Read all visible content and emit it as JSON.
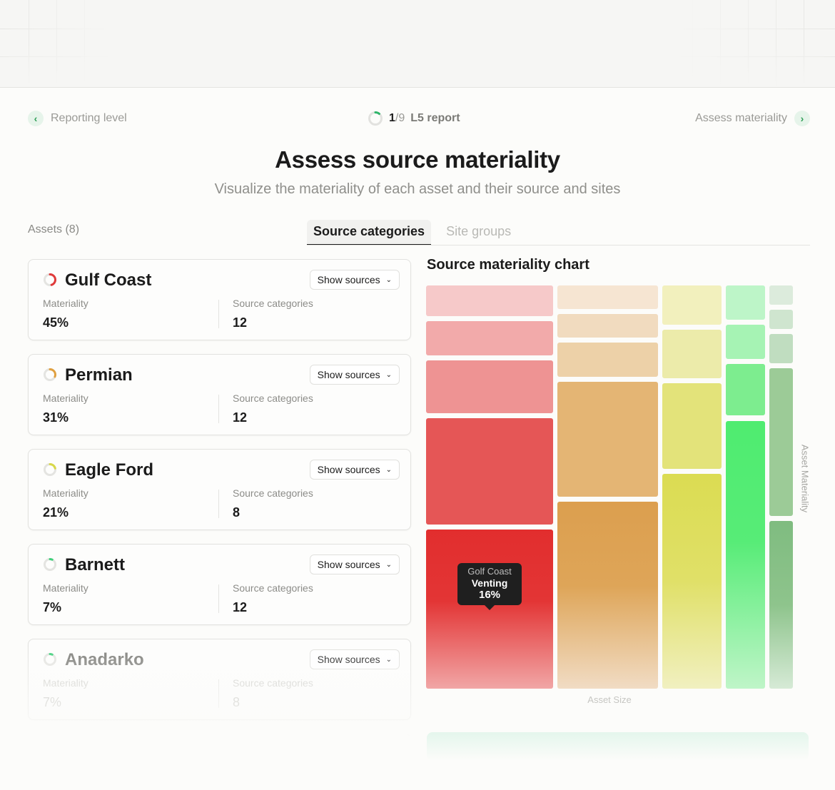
{
  "nav": {
    "back_label": "Reporting level",
    "next_label": "Assess materiality",
    "step_current": "1",
    "step_total": "/9",
    "step_name": "L5 report",
    "step_progress": 0.11
  },
  "header": {
    "title": "Assess source materiality",
    "subtitle": "Visualize the materiality of each asset and their source and sites"
  },
  "assets_label": "Assets (8)",
  "tabs": [
    {
      "label": "Source categories",
      "active": true
    },
    {
      "label": "Site groups",
      "active": false
    }
  ],
  "card_labels": {
    "materiality": "Materiality",
    "source_categories": "Source categories",
    "show_sources": "Show sources"
  },
  "assets": [
    {
      "name": "Gulf Coast",
      "materiality": "45%",
      "source_categories": "12",
      "ring_color": "#e03a3a",
      "ring_fraction": 0.45
    },
    {
      "name": "Permian",
      "materiality": "31%",
      "source_categories": "12",
      "ring_color": "#e0a040",
      "ring_fraction": 0.31
    },
    {
      "name": "Eagle Ford",
      "materiality": "21%",
      "source_categories": "8",
      "ring_color": "#d8d84a",
      "ring_fraction": 0.21
    },
    {
      "name": "Barnett",
      "materiality": "7%",
      "source_categories": "12",
      "ring_color": "#3ed07a",
      "ring_fraction": 0.07
    },
    {
      "name": "Anadarko",
      "materiality": "7%",
      "source_categories": "8",
      "ring_color": "#3ed07a",
      "ring_fraction": 0.07
    }
  ],
  "chart": {
    "title": "Source materiality chart",
    "x_axis_label": "Asset Size",
    "y_axis_label": "Asset Materiality",
    "tooltip": {
      "asset": "Golf Coast",
      "source": "Venting",
      "value": "16%"
    }
  },
  "colors": {
    "accent_green": "#2f9e57",
    "gulf_coast": "#e03a3a",
    "permian": "#dca050",
    "eagle_ford": "#dbdc52",
    "barnett": "#4fec70",
    "anadarko": "#7fbc80"
  }
}
